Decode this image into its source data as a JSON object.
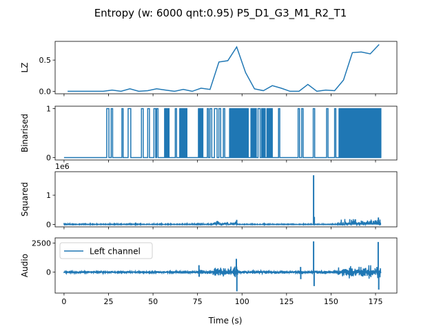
{
  "figure": {
    "title": "Entropy (w: 6000 qnt:0.95) P5_D1_G3_M1_R2_T1",
    "xlabel": "Time (s)",
    "x_ticks": [
      "0",
      "25",
      "50",
      "75",
      "100",
      "125",
      "150",
      "175"
    ]
  },
  "chart_data": [
    {
      "type": "line",
      "ylabel": "LZ",
      "xlim": [
        -5,
        187
      ],
      "ylim": [
        -0.04,
        0.8
      ],
      "y_ticks": [
        {
          "v": 0.0,
          "label": "0.0"
        },
        {
          "v": 0.5,
          "label": "0.5"
        }
      ],
      "color": "#1f77b4",
      "series": [
        {
          "x": [
            2,
            7,
            12,
            17,
            22,
            27,
            32,
            37,
            42,
            47,
            52,
            57,
            62,
            67,
            72,
            77,
            82,
            87,
            92,
            97,
            102,
            107,
            112,
            117,
            122,
            127,
            132,
            137,
            142,
            147,
            152,
            157,
            162,
            167,
            172,
            177
          ],
          "y": [
            0.0,
            0.0,
            0.0,
            0.0,
            0.0,
            0.02,
            0.0,
            0.04,
            0.0,
            0.01,
            0.04,
            0.02,
            0.0,
            0.03,
            0.0,
            0.05,
            0.03,
            0.47,
            0.49,
            0.71,
            0.3,
            0.04,
            0.01,
            0.09,
            0.05,
            0.0,
            0.0,
            0.11,
            0.0,
            0.02,
            0.01,
            0.18,
            0.62,
            0.63,
            0.6,
            0.75
          ]
        }
      ]
    },
    {
      "type": "line",
      "ylabel": "Binarised",
      "xlim": [
        -5,
        187
      ],
      "ylim": [
        -0.05,
        1.05
      ],
      "y_ticks": [
        {
          "v": 0,
          "label": "0"
        },
        {
          "v": 1,
          "label": "1"
        }
      ],
      "color": "#1f77b4",
      "pulses": [
        [
          24,
          25.2
        ],
        [
          26.5,
          27.3
        ],
        [
          32.5,
          33.2
        ],
        [
          36,
          37.5
        ],
        [
          43.5,
          44.5
        ],
        [
          47,
          48
        ],
        [
          50.5,
          51.5
        ],
        [
          52,
          52.8
        ],
        [
          56.5,
          59
        ],
        [
          62.5,
          63.2
        ],
        [
          65,
          69
        ],
        [
          75.5,
          78
        ],
        [
          80.5,
          81.2
        ],
        [
          82,
          83
        ],
        [
          84.5,
          86
        ],
        [
          87,
          88
        ],
        [
          89.5,
          90.3
        ],
        [
          93,
          103.5
        ],
        [
          105,
          108
        ],
        [
          109,
          110.2
        ],
        [
          111,
          113
        ],
        [
          114,
          117
        ],
        [
          120.5,
          121.2
        ],
        [
          131.5,
          132.3
        ],
        [
          133.5,
          134.3
        ],
        [
          140,
          140.8
        ],
        [
          147.5,
          148.3
        ],
        [
          152,
          152.7
        ],
        [
          154.5,
          178
        ]
      ]
    },
    {
      "type": "line",
      "ylabel": "Squared",
      "exponent_label": "1e6",
      "xlim": [
        -5,
        187
      ],
      "ylim": [
        -0.08,
        1.8
      ],
      "y_ticks": [
        {
          "v": 0,
          "label": "0"
        },
        {
          "v": 1,
          "label": "1"
        }
      ],
      "color": "#1f77b4",
      "spikes": [
        {
          "x": 140.2,
          "y": 1.68
        },
        {
          "x": 140.6,
          "y": 0.26
        },
        {
          "x": 97.0,
          "y": 0.16
        },
        {
          "x": 176.6,
          "y": 0.24
        }
      ],
      "bursts": [
        {
          "from": 84,
          "to": 98,
          "amp": 0.15
        },
        {
          "from": 154,
          "to": 178,
          "amp": 0.22
        },
        {
          "from": 0,
          "to": 84,
          "amp": 0.03
        },
        {
          "from": 98,
          "to": 154,
          "amp": 0.025
        }
      ]
    },
    {
      "type": "line",
      "ylabel": "Audio",
      "xlim": [
        -5,
        187
      ],
      "ylim": [
        -1800,
        2950
      ],
      "y_ticks": [
        {
          "v": 0,
          "label": "0"
        },
        {
          "v": 2500,
          "label": "2500"
        }
      ],
      "color": "#1f77b4",
      "legend": {
        "label": "Left channel",
        "position": "upper-left"
      },
      "spikes": [
        {
          "x": 96.8,
          "y": 1150
        },
        {
          "x": 97.1,
          "y": -1650
        },
        {
          "x": 140.2,
          "y": 2650
        },
        {
          "x": 140.5,
          "y": -1200
        },
        {
          "x": 176.5,
          "y": 2600
        },
        {
          "x": 176.8,
          "y": -1500
        },
        {
          "x": 75.8,
          "y": 600
        },
        {
          "x": 75.9,
          "y": -400
        },
        {
          "x": 132.9,
          "y": 450
        },
        {
          "x": 133.0,
          "y": -600
        }
      ],
      "bursts": [
        {
          "from": 0,
          "to": 75,
          "amp": 120
        },
        {
          "from": 75,
          "to": 84,
          "amp": 250
        },
        {
          "from": 84,
          "to": 98,
          "amp": 550
        },
        {
          "from": 98,
          "to": 154,
          "amp": 180
        },
        {
          "from": 154,
          "to": 178,
          "amp": 650
        }
      ]
    }
  ]
}
